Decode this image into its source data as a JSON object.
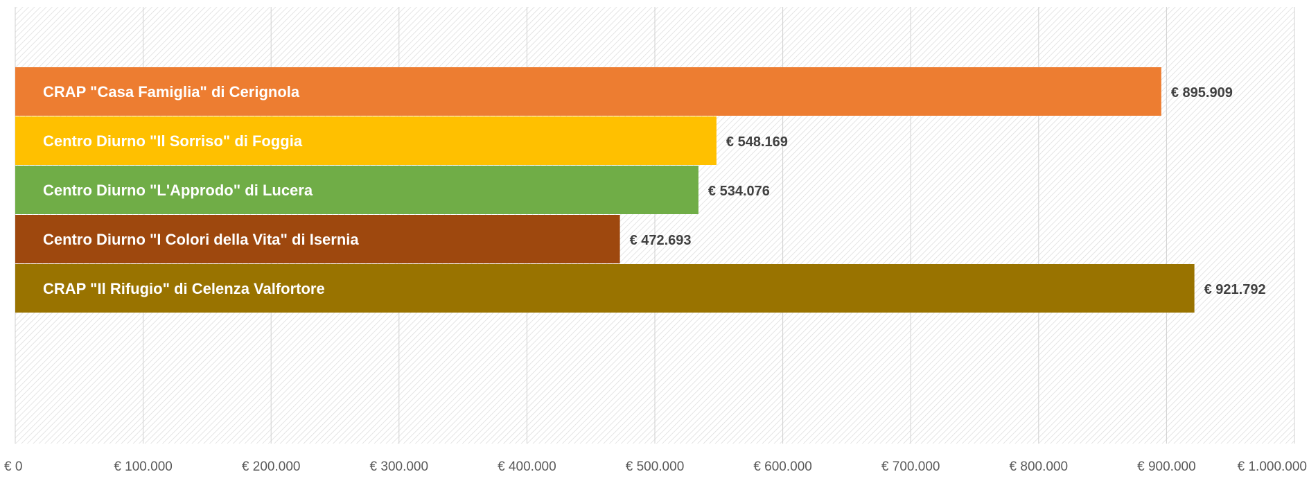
{
  "chart_data": {
    "type": "bar",
    "orientation": "horizontal",
    "categories": [
      "CRAP \"Casa Famiglia\" di Cerignola",
      "Centro Diurno \"Il Sorriso\" di Foggia",
      "Centro Diurno \"L'Approdo\" di Lucera",
      "Centro Diurno \"I Colori della Vita\" di Isernia",
      "CRAP \"Il Rifugio\" di Celenza Valfortore"
    ],
    "values": [
      895909,
      548169,
      534076,
      472693,
      921792
    ],
    "value_labels": [
      "€ 895.909",
      "€ 548.169",
      "€ 534.076",
      "€ 472.693",
      "€ 921.792"
    ],
    "colors": [
      "#ED7D31",
      "#FFC000",
      "#70AD47",
      "#9E480E",
      "#997300"
    ],
    "xlim": [
      0,
      1000000
    ],
    "x_ticks": [
      0,
      100000,
      200000,
      300000,
      400000,
      500000,
      600000,
      700000,
      800000,
      900000,
      1000000
    ],
    "x_tick_labels": [
      "€ 0",
      "€ 100.000",
      "€ 200.000",
      "€ 300.000",
      "€ 400.000",
      "€ 500.000",
      "€ 600.000",
      "€ 700.000",
      "€ 800.000",
      "€ 900.000",
      "€ 1.000.000"
    ],
    "grid": true,
    "plot_background": "hatched",
    "title": "",
    "xlabel": "",
    "ylabel": ""
  }
}
